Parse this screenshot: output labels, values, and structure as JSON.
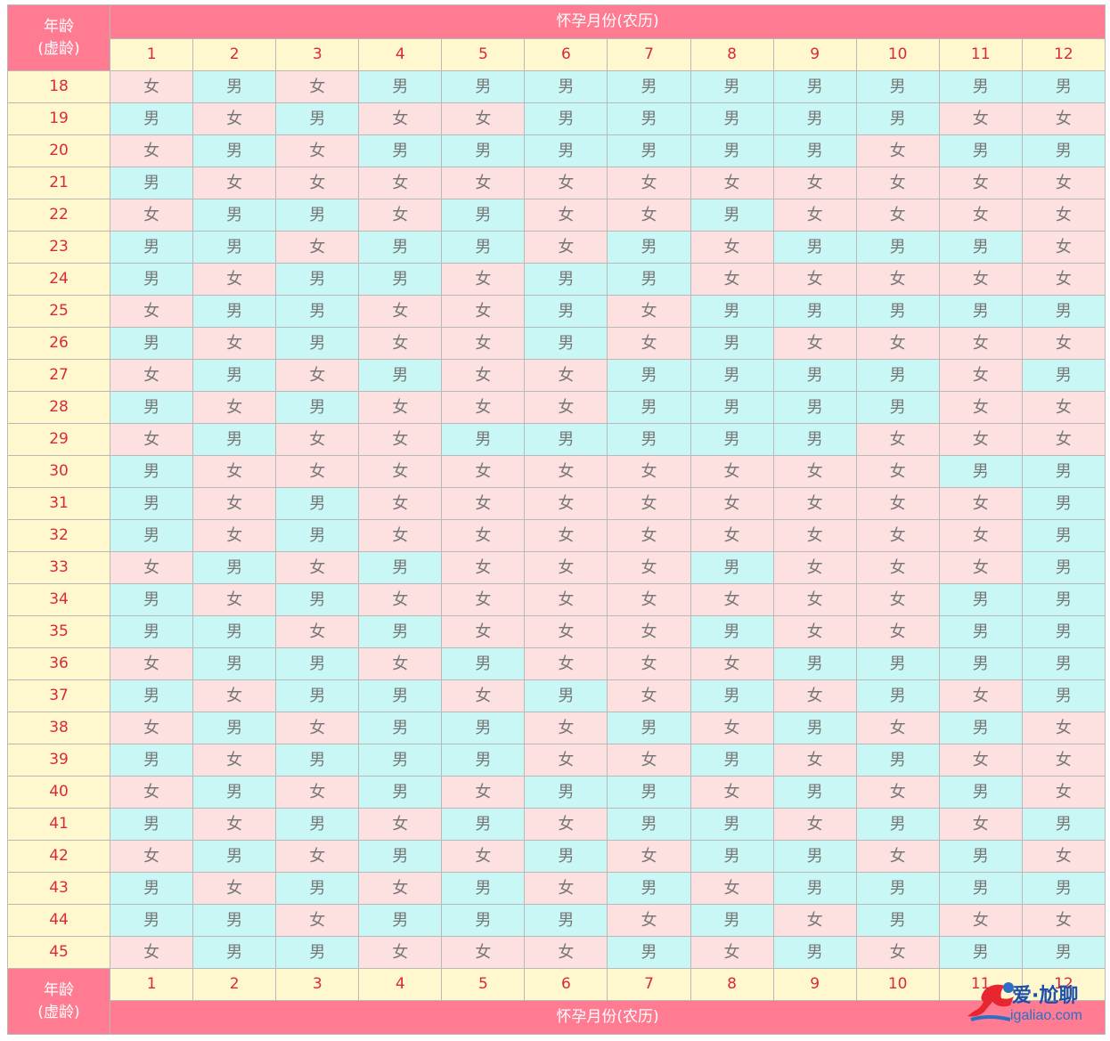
{
  "header": {
    "age_label_line1": "年龄",
    "age_label_line2": "(虚龄)",
    "month_title": "怀孕月份(农历)"
  },
  "months": [
    "1",
    "2",
    "3",
    "4",
    "5",
    "6",
    "7",
    "8",
    "9",
    "10",
    "11",
    "12"
  ],
  "rows": [
    {
      "age": "18",
      "cells": [
        "女",
        "男",
        "女",
        "男",
        "男",
        "男",
        "男",
        "男",
        "男",
        "男",
        "男",
        "男"
      ]
    },
    {
      "age": "19",
      "cells": [
        "男",
        "女",
        "男",
        "女",
        "女",
        "男",
        "男",
        "男",
        "男",
        "男",
        "女",
        "女"
      ]
    },
    {
      "age": "20",
      "cells": [
        "女",
        "男",
        "女",
        "男",
        "男",
        "男",
        "男",
        "男",
        "男",
        "女",
        "男",
        "男"
      ]
    },
    {
      "age": "21",
      "cells": [
        "男",
        "女",
        "女",
        "女",
        "女",
        "女",
        "女",
        "女",
        "女",
        "女",
        "女",
        "女"
      ]
    },
    {
      "age": "22",
      "cells": [
        "女",
        "男",
        "男",
        "女",
        "男",
        "女",
        "女",
        "男",
        "女",
        "女",
        "女",
        "女"
      ]
    },
    {
      "age": "23",
      "cells": [
        "男",
        "男",
        "女",
        "男",
        "男",
        "女",
        "男",
        "女",
        "男",
        "男",
        "男",
        "女"
      ]
    },
    {
      "age": "24",
      "cells": [
        "男",
        "女",
        "男",
        "男",
        "女",
        "男",
        "男",
        "女",
        "女",
        "女",
        "女",
        "女"
      ]
    },
    {
      "age": "25",
      "cells": [
        "女",
        "男",
        "男",
        "女",
        "女",
        "男",
        "女",
        "男",
        "男",
        "男",
        "男",
        "男"
      ]
    },
    {
      "age": "26",
      "cells": [
        "男",
        "女",
        "男",
        "女",
        "女",
        "男",
        "女",
        "男",
        "女",
        "女",
        "女",
        "女"
      ]
    },
    {
      "age": "27",
      "cells": [
        "女",
        "男",
        "女",
        "男",
        "女",
        "女",
        "男",
        "男",
        "男",
        "男",
        "女",
        "男"
      ]
    },
    {
      "age": "28",
      "cells": [
        "男",
        "女",
        "男",
        "女",
        "女",
        "女",
        "男",
        "男",
        "男",
        "男",
        "女",
        "女"
      ]
    },
    {
      "age": "29",
      "cells": [
        "女",
        "男",
        "女",
        "女",
        "男",
        "男",
        "男",
        "男",
        "男",
        "女",
        "女",
        "女"
      ]
    },
    {
      "age": "30",
      "cells": [
        "男",
        "女",
        "女",
        "女",
        "女",
        "女",
        "女",
        "女",
        "女",
        "女",
        "男",
        "男"
      ]
    },
    {
      "age": "31",
      "cells": [
        "男",
        "女",
        "男",
        "女",
        "女",
        "女",
        "女",
        "女",
        "女",
        "女",
        "女",
        "男"
      ]
    },
    {
      "age": "32",
      "cells": [
        "男",
        "女",
        "男",
        "女",
        "女",
        "女",
        "女",
        "女",
        "女",
        "女",
        "女",
        "男"
      ]
    },
    {
      "age": "33",
      "cells": [
        "女",
        "男",
        "女",
        "男",
        "女",
        "女",
        "女",
        "男",
        "女",
        "女",
        "女",
        "男"
      ]
    },
    {
      "age": "34",
      "cells": [
        "男",
        "女",
        "男",
        "女",
        "女",
        "女",
        "女",
        "女",
        "女",
        "女",
        "男",
        "男"
      ]
    },
    {
      "age": "35",
      "cells": [
        "男",
        "男",
        "女",
        "男",
        "女",
        "女",
        "女",
        "男",
        "女",
        "女",
        "男",
        "男"
      ]
    },
    {
      "age": "36",
      "cells": [
        "女",
        "男",
        "男",
        "女",
        "男",
        "女",
        "女",
        "女",
        "男",
        "男",
        "男",
        "男"
      ]
    },
    {
      "age": "37",
      "cells": [
        "男",
        "女",
        "男",
        "男",
        "女",
        "男",
        "女",
        "男",
        "女",
        "男",
        "女",
        "男"
      ]
    },
    {
      "age": "38",
      "cells": [
        "女",
        "男",
        "女",
        "男",
        "男",
        "女",
        "男",
        "女",
        "男",
        "女",
        "男",
        "女"
      ]
    },
    {
      "age": "39",
      "cells": [
        "男",
        "女",
        "男",
        "男",
        "男",
        "女",
        "女",
        "男",
        "女",
        "男",
        "女",
        "女"
      ]
    },
    {
      "age": "40",
      "cells": [
        "女",
        "男",
        "女",
        "男",
        "女",
        "男",
        "男",
        "女",
        "男",
        "女",
        "男",
        "女"
      ]
    },
    {
      "age": "41",
      "cells": [
        "男",
        "女",
        "男",
        "女",
        "男",
        "女",
        "男",
        "男",
        "女",
        "男",
        "女",
        "男"
      ]
    },
    {
      "age": "42",
      "cells": [
        "女",
        "男",
        "女",
        "男",
        "女",
        "男",
        "女",
        "男",
        "男",
        "女",
        "男",
        "女"
      ]
    },
    {
      "age": "43",
      "cells": [
        "男",
        "女",
        "男",
        "女",
        "男",
        "女",
        "男",
        "女",
        "男",
        "男",
        "男",
        "男"
      ]
    },
    {
      "age": "44",
      "cells": [
        "男",
        "男",
        "女",
        "男",
        "男",
        "男",
        "女",
        "男",
        "女",
        "男",
        "女",
        "女"
      ]
    },
    {
      "age": "45",
      "cells": [
        "女",
        "男",
        "男",
        "女",
        "女",
        "女",
        "男",
        "女",
        "男",
        "女",
        "男",
        "男"
      ]
    }
  ],
  "colors": {
    "header_pink": "#ff7b92",
    "month_yellow": "#fff8cf",
    "boy_cyan": "#c8f7f6",
    "girl_pink": "#fde0e0",
    "label_red": "#d9293b"
  },
  "watermark": {
    "brand": "爱·尬聊",
    "url": "igaliao.com"
  }
}
